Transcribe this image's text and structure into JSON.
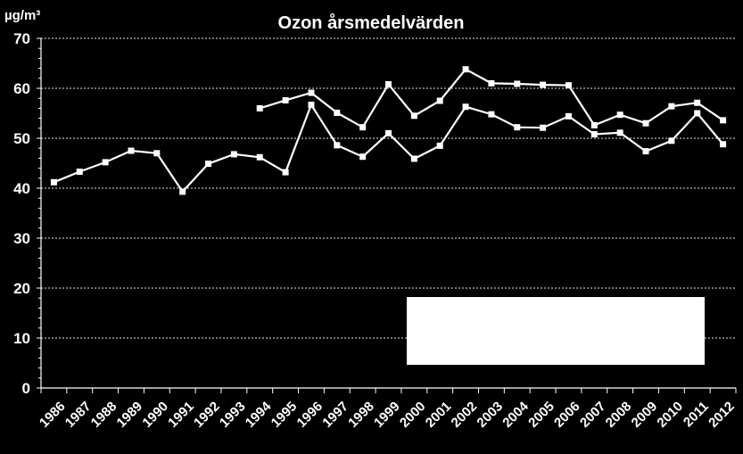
{
  "chart_data": {
    "type": "line",
    "title": "Ozon årsmedelvärden",
    "ylabel": "µg/m³",
    "xlabel": "",
    "ylim": [
      0,
      70
    ],
    "yticks": [
      0,
      10,
      20,
      30,
      40,
      50,
      60,
      70
    ],
    "categories": [
      "1986",
      "1987",
      "1988",
      "1989",
      "1990",
      "1991",
      "1992",
      "1993",
      "1994",
      "1995",
      "1996",
      "1997",
      "1998",
      "1999",
      "2000",
      "2001",
      "2002",
      "2003",
      "2004",
      "2005",
      "2006",
      "2007",
      "2008",
      "2009",
      "2010",
      "2011",
      "2012"
    ],
    "grid": true,
    "legend": "center-right box (blank)",
    "series": [
      {
        "color": "#ffffff",
        "values": [
          41.2,
          43.3,
          45.2,
          47.5,
          47.0,
          39.3,
          44.9,
          46.8,
          46.2,
          43.2,
          56.7,
          48.6,
          46.3,
          51.0,
          45.9,
          48.5,
          56.3,
          54.8,
          52.2,
          52.1,
          54.4,
          50.8,
          51.1,
          47.4,
          49.5,
          55.0,
          48.8
        ]
      },
      {
        "color": "#ffffff",
        "values": [
          null,
          null,
          null,
          null,
          null,
          null,
          null,
          null,
          56.0,
          57.6,
          59.1,
          55.1,
          52.2,
          60.8,
          54.5,
          57.5,
          63.8,
          61.0,
          60.9,
          60.7,
          60.6,
          52.6,
          54.7,
          53.0,
          56.4,
          57.1,
          53.6
        ]
      }
    ]
  }
}
